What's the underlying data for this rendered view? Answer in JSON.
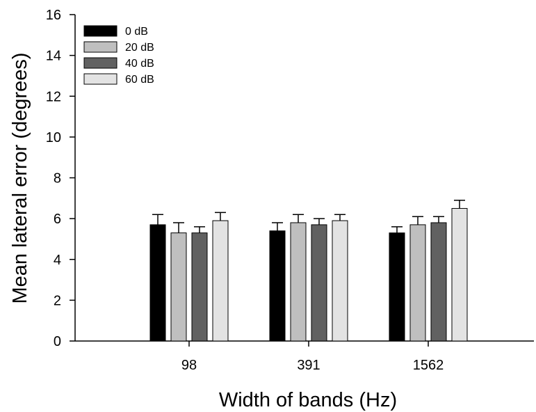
{
  "chart_data": {
    "type": "bar",
    "xlabel": "Width of bands (Hz)",
    "ylabel": "Mean lateral error (degrees)",
    "categories": [
      "98",
      "391",
      "1562"
    ],
    "ylim": [
      0,
      16
    ],
    "yticks": [
      0,
      2,
      4,
      6,
      8,
      10,
      12,
      14,
      16
    ],
    "grid": false,
    "legend_position": "top-left",
    "series": [
      {
        "name": "0 dB",
        "color": "#000000",
        "values": [
          5.7,
          5.4,
          5.3
        ],
        "errors": [
          0.5,
          0.4,
          0.3
        ]
      },
      {
        "name": "20 dB",
        "color": "#bfbfbf",
        "values": [
          5.3,
          5.8,
          5.7
        ],
        "errors": [
          0.5,
          0.4,
          0.4
        ]
      },
      {
        "name": "40 dB",
        "color": "#616161",
        "values": [
          5.3,
          5.7,
          5.8
        ],
        "errors": [
          0.3,
          0.3,
          0.3
        ]
      },
      {
        "name": "60 dB",
        "color": "#e3e3e3",
        "values": [
          5.9,
          5.9,
          6.5
        ],
        "errors": [
          0.4,
          0.3,
          0.4
        ]
      }
    ]
  }
}
